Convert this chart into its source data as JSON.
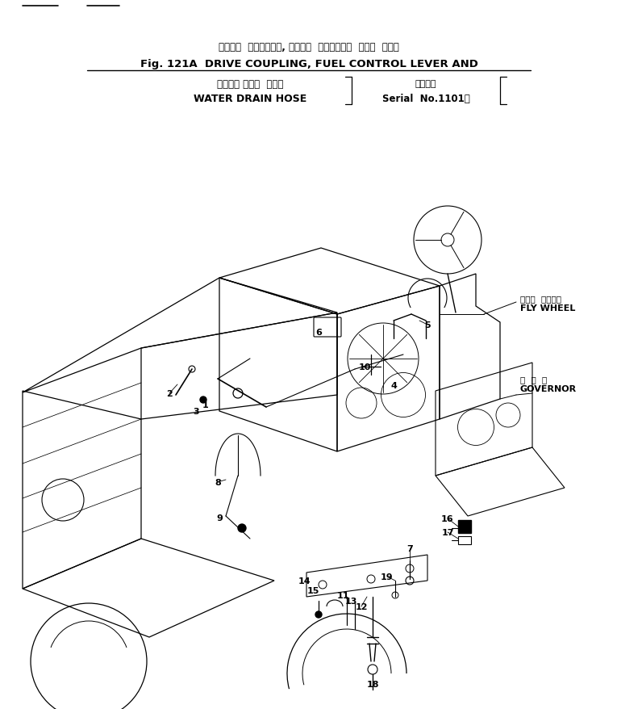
{
  "title_jp": "ドライブ  カップリング, フゥエル  コントロール  レバー  および",
  "title_fig": "Fig. 121A  DRIVE COUPLING, FUEL CONTROL LEVER AND",
  "title_sub_jp": "ウォータ ドレン  ホース",
  "title_sub_en": "WATER DRAIN HOSE",
  "title_serial_jp": "適用号機",
  "title_serial_en": "Serial  No.1101～",
  "label_flywheel_jp": "フライ  ホイール",
  "label_flywheel_en": "FLY WHEEL",
  "label_governor_jp": "ガ  バ  ナ",
  "label_governor_en": "GOVERNOR",
  "bg_color": "#ffffff",
  "line_color": "#000000"
}
